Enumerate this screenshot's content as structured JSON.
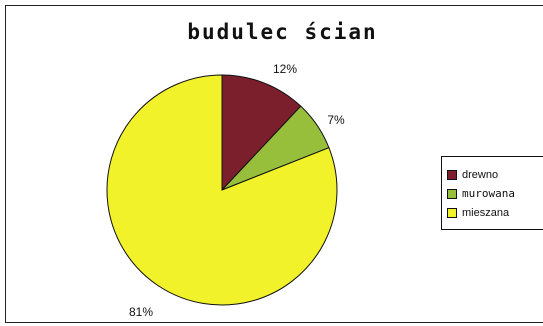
{
  "chart_data": {
    "type": "pie",
    "title": "budulec ścian",
    "categories": [
      "drewno",
      "murowana",
      "mieszana"
    ],
    "values": [
      12,
      7,
      81
    ],
    "labels": [
      "12%",
      "7%",
      "81%"
    ],
    "colors": [
      "#7a1f2b",
      "#98bf3c",
      "#f2f22a"
    ],
    "legend_position": "right"
  }
}
